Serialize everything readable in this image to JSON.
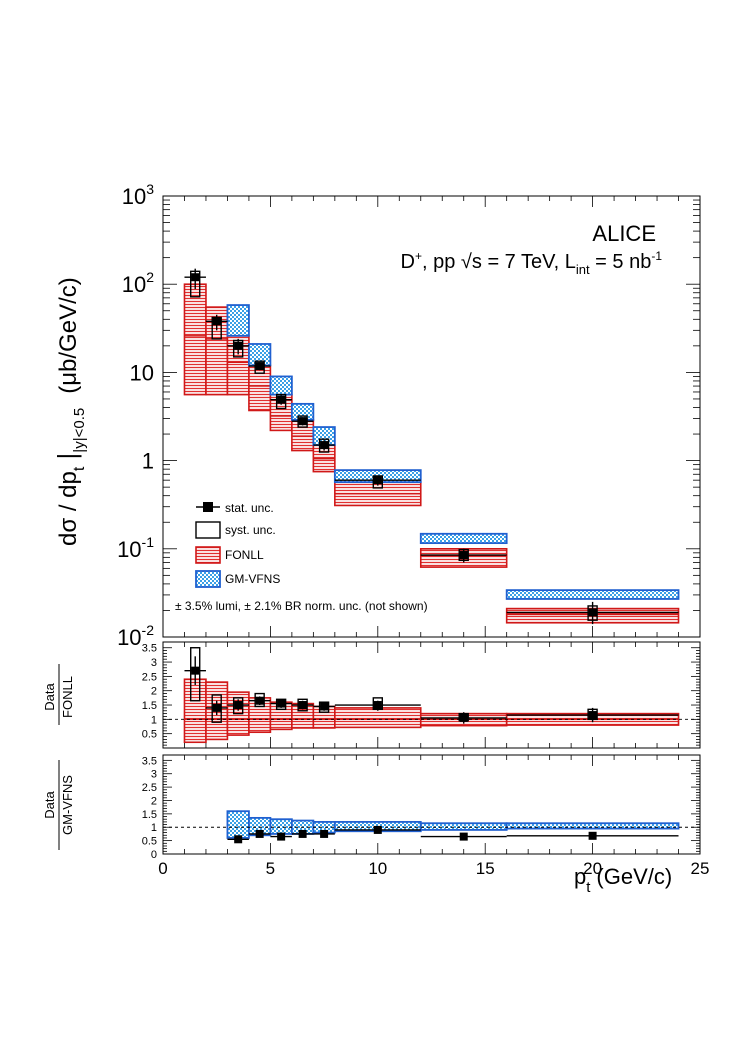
{
  "chart_data": [
    {
      "type": "bar",
      "panel": "cross-section",
      "experiment": "ALICE",
      "title_line2_prefix": "D",
      "title_line2_sup": "+",
      "title_line2_mid": ", pp ",
      "title_line2_sqrt": "√s",
      "title_line2_energy": " = 7 TeV, L",
      "title_line2_sub": "int",
      "title_line2_lumi": " = 5 nb",
      "title_line2_exp": "-1",
      "ylabel": "dσ / dp",
      "ylabel_t": "t",
      "ylabel_bar": "|",
      "ylabel_sel": "|y|<0.5",
      "ylabel_units": "(μb/GeV/c)",
      "yscale": "log",
      "ylim": [
        0.01,
        1000
      ],
      "xlim": [
        0,
        25
      ],
      "y_ticks": [
        {
          "v": 1000,
          "base": "10",
          "exp": "3"
        },
        {
          "v": 100,
          "base": "10",
          "exp": "2"
        },
        {
          "v": 10,
          "base": "10",
          "exp": ""
        },
        {
          "v": 1,
          "base": "1",
          "exp": ""
        },
        {
          "v": 0.1,
          "base": "10",
          "exp": "-1"
        },
        {
          "v": 0.01,
          "base": "10",
          "exp": "-2"
        }
      ],
      "note": "± 3.5% lumi, ± 2.1% BR norm. unc. (not shown)",
      "legend": [
        "stat. unc.",
        "syst. unc.",
        "FONLL",
        "GM-VFNS"
      ],
      "bins": [
        {
          "lo": 1,
          "hi": 2,
          "data": 120,
          "stat": [
            88,
            150
          ],
          "syst": [
            72,
            140
          ],
          "fonll": [
            5.6,
            100
          ],
          "fonll_c": 26
        },
        {
          "lo": 2,
          "hi": 3,
          "data": 38,
          "stat": [
            30,
            45
          ],
          "syst": [
            24,
            42
          ],
          "fonll": [
            5.6,
            55
          ],
          "fonll_c": 24
        },
        {
          "lo": 3,
          "hi": 4,
          "data": 20,
          "stat": [
            16,
            24
          ],
          "syst": [
            15,
            23
          ],
          "fonll": [
            5.6,
            26
          ],
          "fonll_c": 13,
          "gmv": [
            26,
            58
          ]
        },
        {
          "lo": 4,
          "hi": 5,
          "data": 11.8,
          "stat": [
            10.6,
            13
          ],
          "syst": [
            9.8,
            13.4
          ],
          "fonll": [
            3.7,
            12
          ],
          "fonll_c": 7,
          "gmv": [
            12,
            21
          ]
        },
        {
          "lo": 5,
          "hi": 6,
          "data": 4.9,
          "stat": [
            4.3,
            5.5
          ],
          "syst": [
            3.9,
            5.6
          ],
          "fonll": [
            2.2,
            5.6
          ],
          "fonll_c": 3.2,
          "gmv": [
            5.6,
            9
          ]
        },
        {
          "lo": 6,
          "hi": 7,
          "data": 2.8,
          "stat": [
            2.5,
            3.1
          ],
          "syst": [
            2.4,
            3.2
          ],
          "fonll": [
            1.3,
            2.9
          ],
          "fonll_c": 1.9,
          "gmv": [
            2.9,
            4.4
          ]
        },
        {
          "lo": 7,
          "hi": 8,
          "data": 1.5,
          "stat": [
            1.3,
            1.7
          ],
          "syst": [
            1.25,
            1.75
          ],
          "fonll": [
            0.75,
            1.5
          ],
          "fonll_c": 1.05,
          "gmv": [
            1.5,
            2.4
          ]
        },
        {
          "lo": 8,
          "hi": 12,
          "data": 0.6,
          "stat": [
            0.52,
            0.66
          ],
          "syst": [
            0.49,
            0.67
          ],
          "fonll": [
            0.31,
            0.57
          ],
          "fonll_c": 0.42,
          "gmv": [
            0.57,
            0.78
          ]
        },
        {
          "lo": 12,
          "hi": 16,
          "data": 0.085,
          "stat": [
            0.07,
            0.1
          ],
          "syst": [
            0.074,
            0.098
          ],
          "fonll": [
            0.062,
            0.1
          ],
          "fonll_c": 0.084,
          "gmv": [
            0.116,
            0.148
          ]
        },
        {
          "lo": 16,
          "hi": 24,
          "data": 0.019,
          "stat": [
            0.014,
            0.025
          ],
          "syst": [
            0.0155,
            0.0225
          ],
          "fonll": [
            0.0145,
            0.021
          ],
          "fonll_c": 0.018,
          "gmv": [
            0.027,
            0.034
          ]
        }
      ]
    },
    {
      "type": "bar",
      "panel": "ratio-fonll",
      "ylabel_num": "Data",
      "ylabel_den": "FONLL",
      "ylim": [
        0,
        3.7
      ],
      "y_ticks": [
        "0.5",
        "1",
        "1.5",
        "2",
        "2.5",
        "3",
        "3.5"
      ],
      "bins": [
        {
          "lo": 1,
          "hi": 2,
          "r": 2.7,
          "stat": [
            2.2,
            3.2
          ],
          "syst": [
            1.65,
            3.5
          ],
          "band": [
            0.2,
            2.4
          ]
        },
        {
          "lo": 2,
          "hi": 3,
          "r": 1.4,
          "stat": [
            1.15,
            1.65
          ],
          "syst": [
            0.9,
            1.85
          ],
          "band": [
            0.3,
            2.3
          ]
        },
        {
          "lo": 3,
          "hi": 4,
          "r": 1.5,
          "stat": [
            1.3,
            1.7
          ],
          "syst": [
            1.2,
            1.75
          ],
          "band": [
            0.45,
            1.95
          ]
        },
        {
          "lo": 4,
          "hi": 5,
          "r": 1.65,
          "stat": [
            1.5,
            1.8
          ],
          "syst": [
            1.45,
            1.9
          ],
          "band": [
            0.55,
            1.75
          ]
        },
        {
          "lo": 5,
          "hi": 6,
          "r": 1.55,
          "stat": [
            1.4,
            1.7
          ],
          "syst": [
            1.35,
            1.7
          ],
          "band": [
            0.65,
            1.6
          ]
        },
        {
          "lo": 6,
          "hi": 7,
          "r": 1.5,
          "stat": [
            1.35,
            1.65
          ],
          "syst": [
            1.3,
            1.7
          ],
          "band": [
            0.7,
            1.55
          ]
        },
        {
          "lo": 7,
          "hi": 8,
          "r": 1.45,
          "stat": [
            1.3,
            1.6
          ],
          "syst": [
            1.25,
            1.6
          ],
          "band": [
            0.7,
            1.45
          ]
        },
        {
          "lo": 8,
          "hi": 12,
          "r": 1.5,
          "stat": [
            1.3,
            1.65
          ],
          "syst": [
            1.35,
            1.75
          ],
          "band": [
            0.72,
            1.4
          ]
        },
        {
          "lo": 12,
          "hi": 16,
          "r": 1.05,
          "stat": [
            0.85,
            1.25
          ],
          "syst": [
            0.95,
            1.2
          ],
          "band": [
            0.78,
            1.2
          ]
        },
        {
          "lo": 16,
          "hi": 24,
          "r": 1.15,
          "stat": [
            0.9,
            1.4
          ],
          "syst": [
            1.0,
            1.35
          ],
          "band": [
            0.8,
            1.2
          ]
        }
      ]
    },
    {
      "type": "bar",
      "panel": "ratio-gmvfns",
      "ylabel_num": "Data",
      "ylabel_den": "GM-VFNS",
      "ylim": [
        0,
        3.7
      ],
      "y_ticks": [
        "0",
        "0.5",
        "1",
        "1.5",
        "2",
        "2.5",
        "3",
        "3.5"
      ],
      "bins": [
        {
          "lo": 3,
          "hi": 4,
          "r": 0.55,
          "stat": [
            0.45,
            0.65
          ],
          "band": [
            0.6,
            1.6
          ]
        },
        {
          "lo": 4,
          "hi": 5,
          "r": 0.75,
          "stat": [
            0.65,
            0.85
          ],
          "band": [
            0.7,
            1.35
          ]
        },
        {
          "lo": 5,
          "hi": 6,
          "r": 0.65,
          "stat": [
            0.55,
            0.75
          ],
          "band": [
            0.75,
            1.3
          ]
        },
        {
          "lo": 6,
          "hi": 7,
          "r": 0.75,
          "stat": [
            0.65,
            0.85
          ],
          "band": [
            0.75,
            1.25
          ]
        },
        {
          "lo": 7,
          "hi": 8,
          "r": 0.75,
          "stat": [
            0.65,
            0.85
          ],
          "band": [
            0.8,
            1.2
          ]
        },
        {
          "lo": 8,
          "hi": 12,
          "r": 0.9,
          "stat": [
            0.8,
            1.0
          ],
          "band": [
            0.85,
            1.2
          ]
        },
        {
          "lo": 12,
          "hi": 16,
          "r": 0.65,
          "stat": [
            0.55,
            0.75
          ],
          "band": [
            0.9,
            1.15
          ]
        },
        {
          "lo": 16,
          "hi": 24,
          "r": 0.68,
          "stat": [
            0.55,
            0.8
          ],
          "band": [
            0.95,
            1.15
          ]
        }
      ],
      "x_ticks": [
        "0",
        "5",
        "10",
        "15",
        "20",
        "25"
      ],
      "xlabel": "p",
      "xlabel_t": "t",
      "xlabel_units": "(GeV/c)"
    }
  ]
}
